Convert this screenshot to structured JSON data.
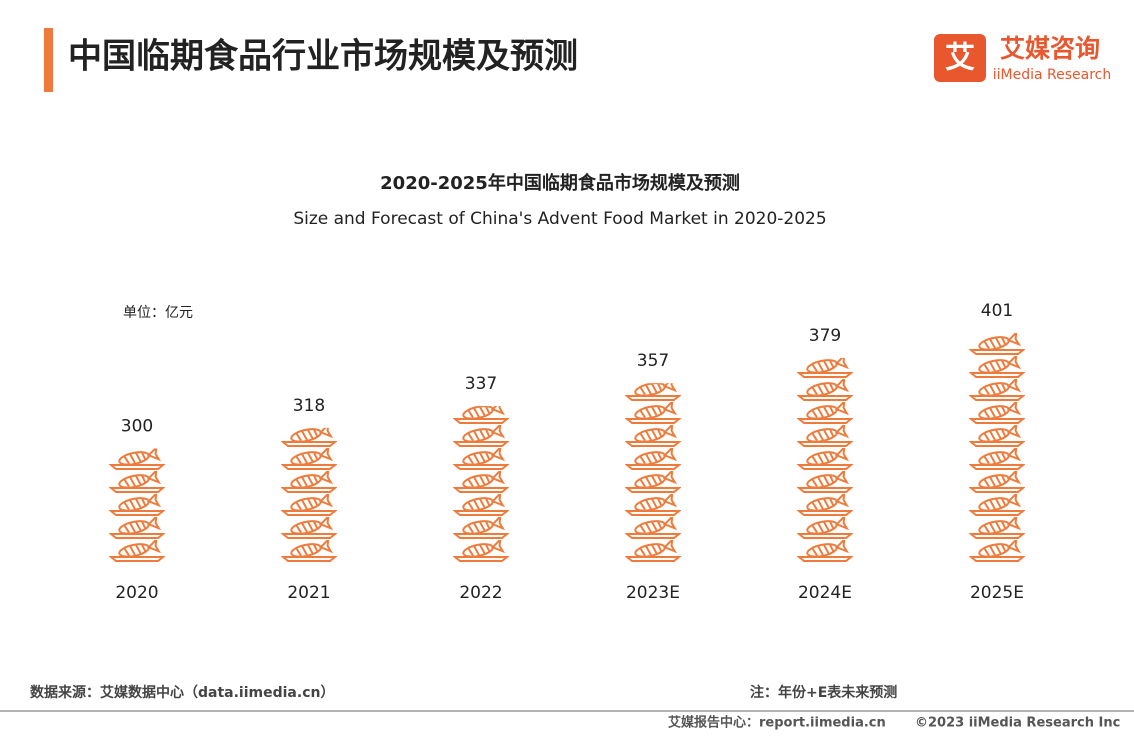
{
  "header": {
    "title": "中国临期食品行业市场规模及预测",
    "logo_cn": "艾媒咨询",
    "logo_en": "iiMedia Research",
    "logo_icon": "艾"
  },
  "chart_data": {
    "type": "bar",
    "title": "2020-2025年中国临期食品市场规模及预测",
    "subtitle": "Size and Forecast of China's Advent Food Market in 2020-2025",
    "unit": "单位：亿元",
    "categories": [
      "2020",
      "2021",
      "2022",
      "2023E",
      "2024E",
      "2025E"
    ],
    "values": [
      300,
      318,
      337,
      357,
      379,
      401
    ],
    "color": "#ee7b3c",
    "ylim": [
      200,
      420
    ]
  },
  "footer": {
    "source": "数据来源：艾媒数据中心（data.iimedia.cn）",
    "note": "注：年份+E表未来预测",
    "report": "艾媒报告中心：report.iimedia.cn",
    "copyright": "©2023  iiMedia Research Inc"
  }
}
